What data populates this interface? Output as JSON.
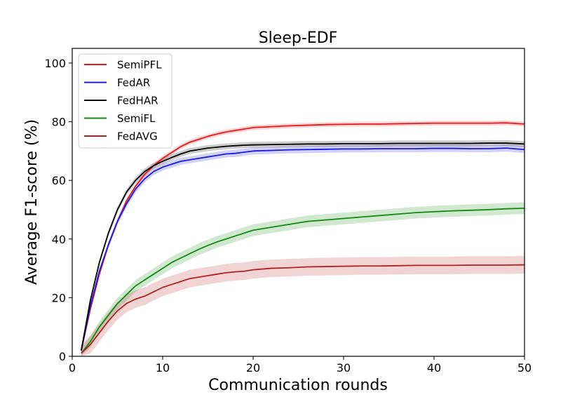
{
  "chart_data": {
    "type": "line",
    "title": "Sleep-EDF",
    "xlabel": "Communication rounds",
    "ylabel": "Average F1-score (%)",
    "xlim": [
      0,
      50
    ],
    "ylim": [
      0,
      105
    ],
    "xticks": [
      0,
      10,
      20,
      30,
      40,
      50
    ],
    "yticks": [
      0,
      20,
      40,
      60,
      80,
      100
    ],
    "grid": false,
    "legend_position": "top-left",
    "series": [
      {
        "name": "SemiPFL",
        "color": "#e41a1c",
        "band": 0.8,
        "x": [
          1,
          2,
          3,
          4,
          5,
          6,
          7,
          8,
          9,
          10,
          11,
          12,
          13,
          14,
          15,
          16,
          17,
          18,
          19,
          20,
          22,
          24,
          26,
          28,
          30,
          32,
          34,
          36,
          38,
          40,
          42,
          44,
          46,
          48,
          50
        ],
        "y": [
          2,
          16,
          28,
          38,
          46,
          53,
          58,
          62,
          65,
          67.5,
          69.5,
          71.5,
          73,
          74,
          75,
          75.8,
          76.5,
          77,
          77.5,
          78,
          78.3,
          78.6,
          78.8,
          79,
          79.1,
          79.2,
          79.2,
          79.3,
          79.4,
          79.5,
          79.5,
          79.5,
          79.5,
          79.6,
          79.2
        ]
      },
      {
        "name": "FedAR",
        "color": "#1a1ae6",
        "band": 1.2,
        "x": [
          1,
          2,
          3,
          4,
          5,
          6,
          7,
          8,
          9,
          10,
          11,
          12,
          13,
          14,
          15,
          16,
          17,
          18,
          19,
          20,
          22,
          24,
          26,
          28,
          30,
          32,
          34,
          36,
          38,
          40,
          42,
          44,
          46,
          48,
          50
        ],
        "y": [
          2,
          17,
          29,
          38,
          46,
          52,
          57,
          60.5,
          63,
          64.5,
          65.5,
          66.5,
          67,
          67.5,
          68,
          68.5,
          69,
          69.2,
          69.6,
          70,
          70.2,
          70.4,
          70.5,
          70.6,
          70.7,
          70.7,
          70.8,
          70.8,
          70.8,
          70.9,
          70.9,
          70.8,
          70.8,
          71,
          70.5
        ]
      },
      {
        "name": "FedHAR",
        "color": "#000000",
        "band": 1.0,
        "x": [
          1,
          2,
          3,
          4,
          5,
          6,
          7,
          8,
          9,
          10,
          11,
          12,
          13,
          14,
          15,
          16,
          17,
          18,
          19,
          20,
          22,
          24,
          26,
          28,
          30,
          32,
          34,
          36,
          38,
          40,
          42,
          44,
          46,
          48,
          50
        ],
        "y": [
          2,
          19,
          32,
          42,
          50,
          56,
          60,
          63,
          65,
          66.5,
          67.8,
          69,
          70,
          70.5,
          71,
          71.3,
          71.6,
          71.8,
          72,
          72.1,
          72.2,
          72.3,
          72.4,
          72.4,
          72.5,
          72.5,
          72.5,
          72.6,
          72.6,
          72.6,
          72.6,
          72.6,
          72.7,
          72.7,
          72.4
        ]
      },
      {
        "name": "SemiFL",
        "color": "#138a13",
        "band": 2.0,
        "x": [
          1,
          2,
          3,
          4,
          5,
          6,
          7,
          8,
          9,
          10,
          11,
          12,
          13,
          14,
          15,
          16,
          17,
          18,
          19,
          20,
          22,
          24,
          26,
          28,
          30,
          32,
          34,
          36,
          38,
          40,
          42,
          44,
          46,
          48,
          50
        ],
        "y": [
          1,
          5,
          10,
          14,
          18,
          21,
          24,
          26,
          28,
          30,
          32,
          33.5,
          35,
          36.5,
          37.8,
          39,
          40,
          41,
          42,
          43,
          44,
          45,
          46,
          46.5,
          47,
          47.5,
          48,
          48.5,
          49,
          49.3,
          49.6,
          49.8,
          50,
          50.3,
          50.5
        ]
      },
      {
        "name": "FedAVG",
        "color": "#b22222",
        "band": 3.0,
        "x": [
          1,
          2,
          3,
          4,
          5,
          6,
          7,
          8,
          9,
          10,
          11,
          12,
          13,
          14,
          15,
          16,
          17,
          18,
          19,
          20,
          22,
          24,
          26,
          28,
          30,
          32,
          34,
          36,
          38,
          40,
          42,
          44,
          46,
          48,
          50
        ],
        "y": [
          1,
          4,
          8,
          12,
          15.5,
          18,
          19.5,
          20.5,
          22,
          23.5,
          24.5,
          25.5,
          26.5,
          27,
          27.5,
          28,
          28.5,
          28.8,
          29,
          29.5,
          30,
          30.2,
          30.5,
          30.6,
          30.7,
          30.8,
          30.8,
          30.9,
          31,
          31,
          31,
          31.1,
          31.1,
          31.1,
          31.2
        ]
      }
    ]
  }
}
